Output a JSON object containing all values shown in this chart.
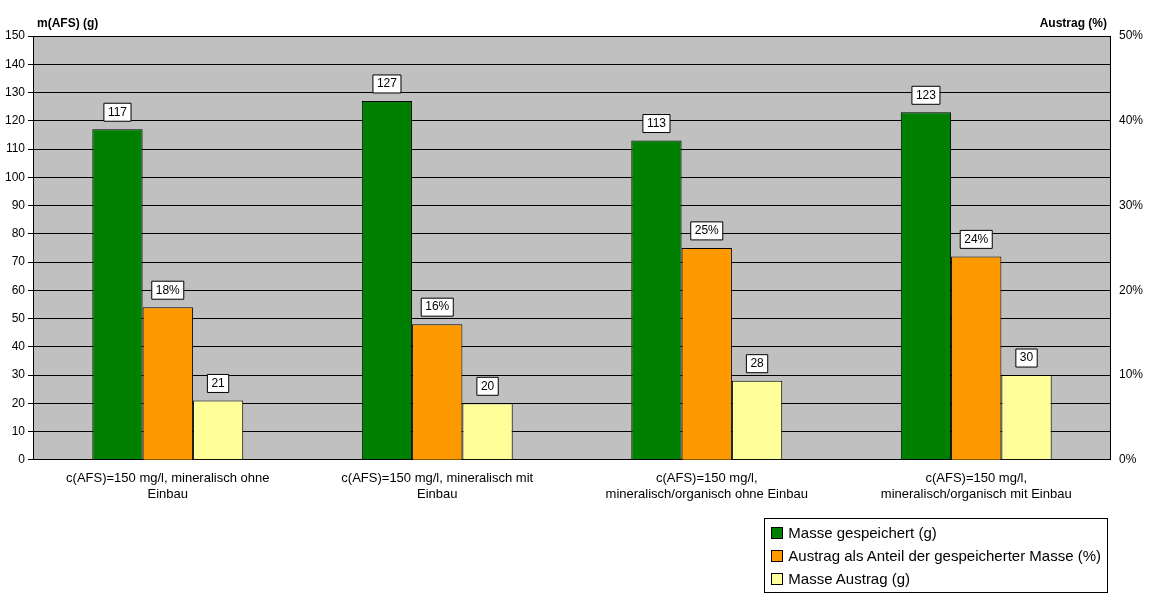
{
  "chart_data": {
    "type": "bar",
    "ylabel": "m(AFS) (g)",
    "y2label": "Austrag (%)",
    "categories": [
      "c(AFS)=150 mg/l, mineralisch ohne Einbau",
      "c(AFS)=150 mg/l, mineralisch mit Einbau",
      "c(AFS)=150 mg/l, mineralisch/organisch ohne Einbau",
      "c(AFS)=150 mg/l, mineralisch/organisch mit Einbau"
    ],
    "series": [
      {
        "name": "Masse gespeichert (g)",
        "color": "#008000",
        "values": [
          117,
          127,
          113,
          123
        ],
        "value_labels": [
          "117",
          "127",
          "113",
          "123"
        ]
      },
      {
        "name": "Austrag als Anteil der gespeicherter Masse (%)",
        "color": "#ff9900",
        "axis": "y2",
        "values": [
          18,
          16,
          25,
          24
        ],
        "value_labels": [
          "18%",
          "16%",
          "25%",
          "24%"
        ]
      },
      {
        "name": "Masse Austrag (g)",
        "color": "#ffff99",
        "values": [
          21,
          20,
          28,
          30
        ],
        "value_labels": [
          "21",
          "20",
          "28",
          "30"
        ]
      }
    ],
    "ylim": [
      0,
      150
    ],
    "yticks": [
      0,
      10,
      20,
      30,
      40,
      50,
      60,
      70,
      80,
      90,
      100,
      110,
      120,
      130,
      140,
      150
    ],
    "y2lim": [
      0,
      50
    ],
    "y2ticks": [
      {
        "value": 0,
        "label": "0%"
      },
      {
        "value": 10,
        "label": "10%"
      },
      {
        "value": 20,
        "label": "20%"
      },
      {
        "value": 30,
        "label": "30%"
      },
      {
        "value": 40,
        "label": "40%"
      },
      {
        "value": 50,
        "label": "50%"
      }
    ],
    "grid": "y",
    "legend": "bottom right"
  }
}
